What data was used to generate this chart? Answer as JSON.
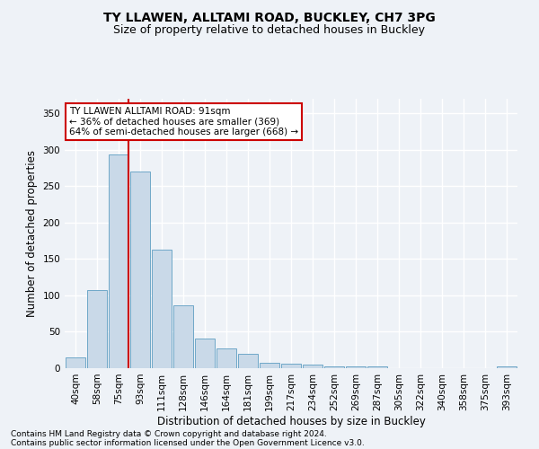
{
  "title": "TY LLAWEN, ALLTAMI ROAD, BUCKLEY, CH7 3PG",
  "subtitle": "Size of property relative to detached houses in Buckley",
  "xlabel": "Distribution of detached houses by size in Buckley",
  "ylabel": "Number of detached properties",
  "categories": [
    "40sqm",
    "58sqm",
    "75sqm",
    "93sqm",
    "111sqm",
    "128sqm",
    "146sqm",
    "164sqm",
    "181sqm",
    "199sqm",
    "217sqm",
    "234sqm",
    "252sqm",
    "269sqm",
    "287sqm",
    "305sqm",
    "322sqm",
    "340sqm",
    "358sqm",
    "375sqm",
    "393sqm"
  ],
  "values": [
    15,
    107,
    293,
    270,
    163,
    86,
    41,
    27,
    20,
    8,
    6,
    5,
    3,
    3,
    3,
    0,
    0,
    0,
    0,
    0,
    3
  ],
  "bar_color": "#c9d9e8",
  "bar_edge_color": "#6fa8c8",
  "highlight_bar_index": 2,
  "highlight_line_color": "#cc0000",
  "annotation_line1": "TY LLAWEN ALLTAMI ROAD: 91sqm",
  "annotation_line2": "← 36% of detached houses are smaller (369)",
  "annotation_line3": "64% of semi-detached houses are larger (668) →",
  "annotation_box_color": "#ffffff",
  "annotation_box_edge_color": "#cc0000",
  "ylim": [
    0,
    370
  ],
  "yticks": [
    0,
    50,
    100,
    150,
    200,
    250,
    300,
    350
  ],
  "background_color": "#eef2f7",
  "grid_color": "#ffffff",
  "footer_line1": "Contains HM Land Registry data © Crown copyright and database right 2024.",
  "footer_line2": "Contains public sector information licensed under the Open Government Licence v3.0.",
  "title_fontsize": 10,
  "subtitle_fontsize": 9,
  "axis_label_fontsize": 8.5,
  "tick_fontsize": 7.5,
  "annotation_fontsize": 7.5,
  "footer_fontsize": 6.5
}
